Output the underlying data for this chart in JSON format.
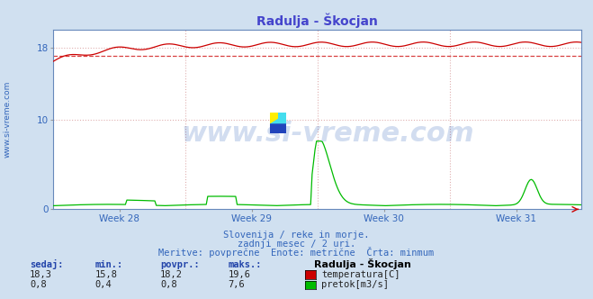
{
  "title": "Radulja - Škocjan",
  "title_color": "#4444cc",
  "bg_color": "#d0e0f0",
  "plot_bg_color": "#ffffff",
  "grid_color": "#e0b0b0",
  "xlabel_weeks": [
    "Week 28",
    "Week 29",
    "Week 30",
    "Week 31"
  ],
  "ylim": [
    0,
    20
  ],
  "yticks": [
    0,
    10,
    18
  ],
  "n_points": 360,
  "temp_min": 15.8,
  "temp_max": 19.6,
  "temp_avg": 18.2,
  "temp_current": 18.3,
  "flow_min": 0.4,
  "flow_max": 7.6,
  "flow_avg": 0.8,
  "flow_current": 0.8,
  "temp_color": "#cc0000",
  "flow_color": "#00bb00",
  "water_level_color": "#0000cc",
  "dashed_line_value": 17.15,
  "watermark_text": "www.si-vreme.com",
  "watermark_color": "#3366bb",
  "watermark_alpha": 0.22,
  "left_label": "www.si-vreme.com",
  "left_label_color": "#3366bb",
  "footer_line1": "Slovenija / reke in morje.",
  "footer_line2": "zadnji mesec / 2 uri.",
  "footer_line3": "Meritve: povprečne  Enote: metrične  Črta: minmum",
  "footer_color": "#3366bb",
  "legend_station": "Radulja - Škocjan",
  "legend_temp": "temperatura[C]",
  "legend_flow": "pretok[m3/s]",
  "table_headers": [
    "sedaj:",
    "min.:",
    "povpr.:",
    "maks.:"
  ],
  "table_temp_values": [
    "18,3",
    "15,8",
    "18,2",
    "19,6"
  ],
  "table_flow_values": [
    "0,8",
    "0,4",
    "0,8",
    "7,6"
  ],
  "table_header_color": "#2244aa",
  "table_value_color": "#222222"
}
